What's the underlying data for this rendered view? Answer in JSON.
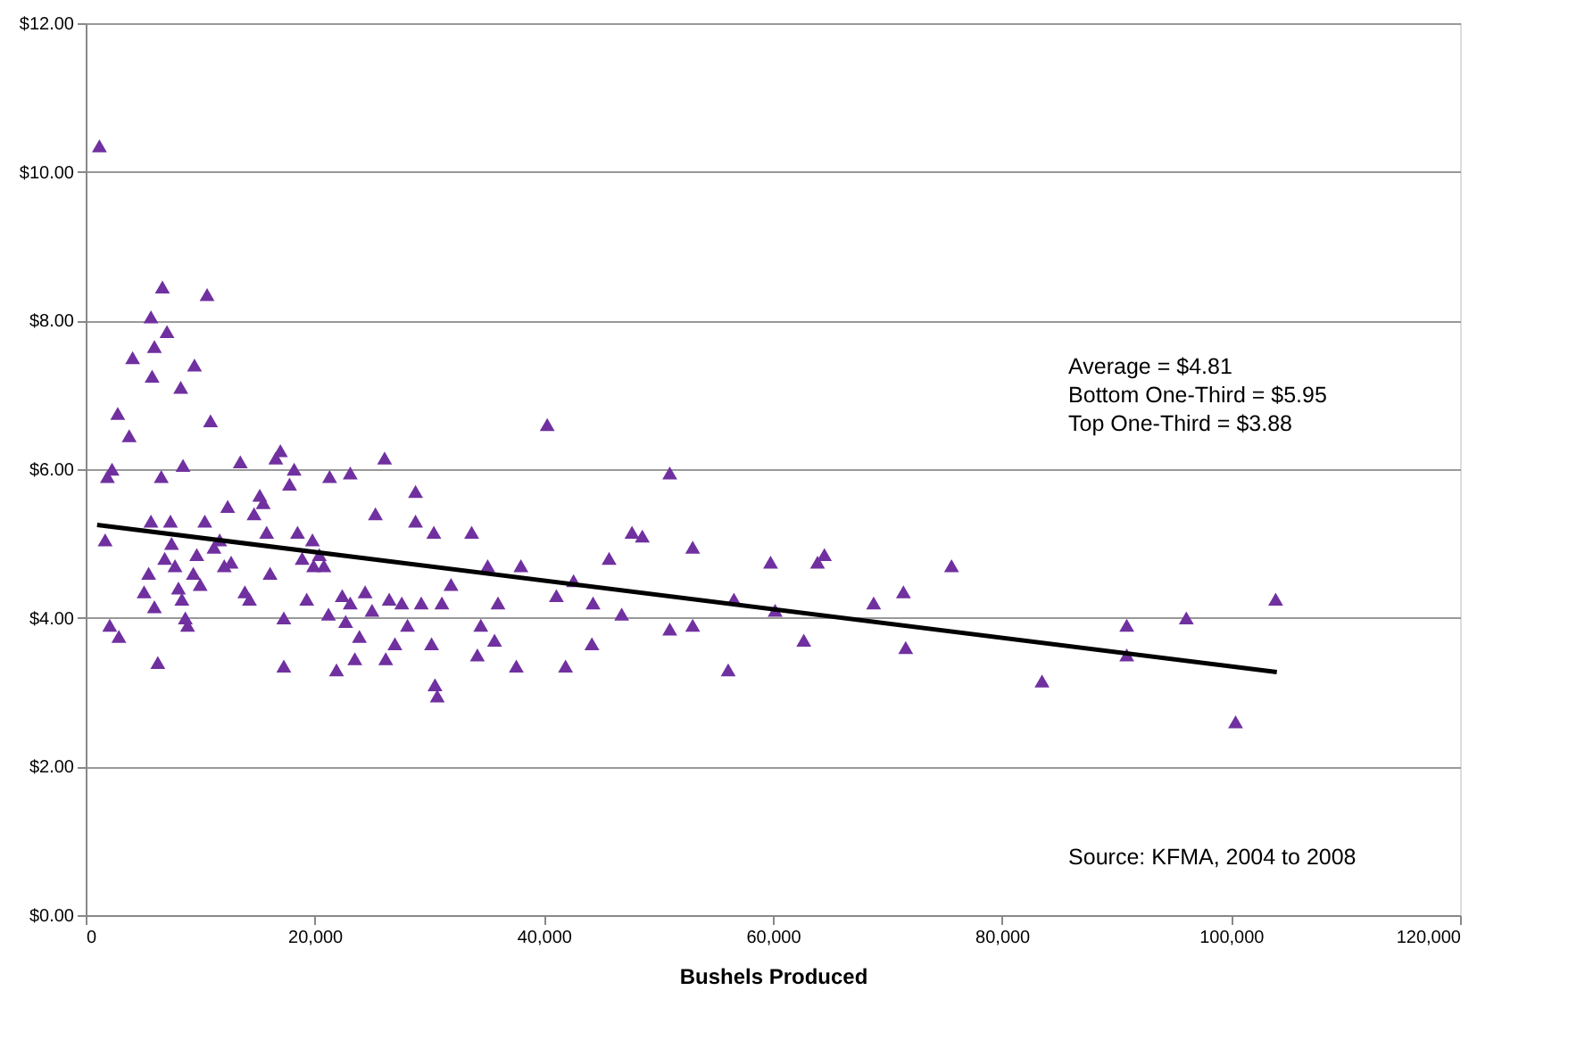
{
  "chart_data": {
    "type": "scatter",
    "xlabel": "Bushels Produced",
    "xlim": [
      0,
      120000
    ],
    "xticks": [
      0,
      {
        "value": 20000,
        "label": "20,000"
      },
      {
        "value": 40000,
        "label": "40,000"
      },
      {
        "value": 60000,
        "label": "60,000"
      },
      {
        "value": 80000,
        "label": "80,000"
      },
      {
        "value": 100000,
        "label": "100,000"
      },
      {
        "value": 120000,
        "label": "120,000"
      }
    ],
    "ylim": [
      0,
      12
    ],
    "yticks": [
      {
        "value": 0,
        "label": "$0.00"
      },
      {
        "value": 2,
        "label": "$2.00"
      },
      {
        "value": 4,
        "label": "$4.00"
      },
      {
        "value": 6,
        "label": "$6.00"
      },
      {
        "value": 8,
        "label": "$8.00"
      },
      {
        "value": 10,
        "label": "$10.00"
      },
      {
        "value": 12,
        "label": "$12.00"
      }
    ],
    "grid": "y",
    "marker": "triangle",
    "annotations": [
      "Average = $4.81",
      "Bottom One-Third = $5.95",
      "Top One-Third = $3.88",
      "Source: KFMA, 2004 to 2008"
    ],
    "series": [
      {
        "color": "#7030a0",
        "x": [
          1200,
          1700,
          2300,
          1900,
          2800,
          2100,
          2900,
          4100,
          3800,
          5700,
          6000,
          5800,
          6700,
          7100,
          8300,
          9500,
          10600,
          10900,
          6600,
          8500,
          5700,
          5500,
          5100,
          6000,
          6300,
          6900,
          7400,
          7500,
          7800,
          8100,
          8400,
          8900,
          8700,
          9400,
          9700,
          10000,
          10400,
          11200,
          11700,
          12100,
          12700,
          12400,
          13500,
          13900,
          14300,
          14700,
          15200,
          15500,
          15800,
          16100,
          16600,
          17000,
          17300,
          17300,
          17800,
          18200,
          18500,
          18900,
          19300,
          19800,
          19900,
          20400,
          20800,
          21300,
          21200,
          21900,
          22400,
          22700,
          23100,
          23100,
          23500,
          23900,
          24400,
          25000,
          25300,
          26100,
          26200,
          26500,
          27000,
          27600,
          28100,
          28800,
          28800,
          29300,
          30200,
          30500,
          30700,
          31100,
          30400,
          31900,
          33700,
          34200,
          34500,
          35100,
          35700,
          36000,
          37600,
          38000,
          40300,
          41100,
          41900,
          42600,
          44200,
          44300,
          45700,
          46800,
          47700,
          48600,
          51000,
          51000,
          53000,
          53000,
          56100,
          56600,
          63900,
          64500,
          62700,
          60200,
          59800,
          68800,
          71400,
          71600,
          75600,
          83500,
          90900,
          90900,
          96100,
          100400,
          103900
        ],
        "values": [
          10.35,
          5.05,
          6.0,
          5.9,
          6.75,
          3.9,
          3.75,
          7.5,
          6.45,
          8.05,
          7.65,
          7.25,
          8.45,
          7.85,
          7.1,
          7.4,
          8.35,
          6.65,
          5.9,
          6.05,
          5.3,
          4.6,
          4.35,
          4.15,
          3.4,
          4.8,
          5.3,
          5.0,
          4.7,
          4.4,
          4.25,
          3.9,
          4.0,
          4.6,
          4.85,
          4.45,
          5.3,
          4.95,
          5.05,
          4.7,
          4.75,
          5.5,
          6.1,
          4.35,
          4.25,
          5.4,
          5.65,
          5.55,
          5.15,
          4.6,
          6.15,
          6.25,
          4.0,
          3.35,
          5.8,
          6.0,
          5.15,
          4.8,
          4.25,
          5.05,
          4.7,
          4.85,
          4.7,
          5.9,
          4.05,
          3.3,
          4.3,
          3.95,
          5.95,
          4.2,
          3.45,
          3.75,
          4.35,
          4.1,
          5.4,
          6.15,
          3.45,
          4.25,
          3.65,
          4.2,
          3.9,
          5.7,
          5.3,
          4.2,
          3.65,
          3.1,
          2.95,
          4.2,
          5.15,
          4.45,
          5.15,
          3.5,
          3.9,
          4.7,
          3.7,
          4.2,
          3.35,
          4.7,
          6.6,
          4.3,
          3.35,
          4.5,
          3.65,
          4.2,
          4.8,
          4.05,
          5.15,
          5.1,
          5.95,
          3.85,
          4.95,
          3.9,
          3.3,
          4.25,
          4.75,
          4.85,
          3.7,
          4.1,
          4.75,
          4.2,
          4.35,
          3.6,
          4.7,
          3.15,
          3.5,
          3.9,
          4.0,
          2.6,
          4.25
        ]
      },
      {
        "type": "line",
        "color": "#000000",
        "marker": "none",
        "line_style": "solid",
        "x": [
          1000,
          104000
        ],
        "values": [
          5.25,
          3.27
        ]
      }
    ]
  }
}
